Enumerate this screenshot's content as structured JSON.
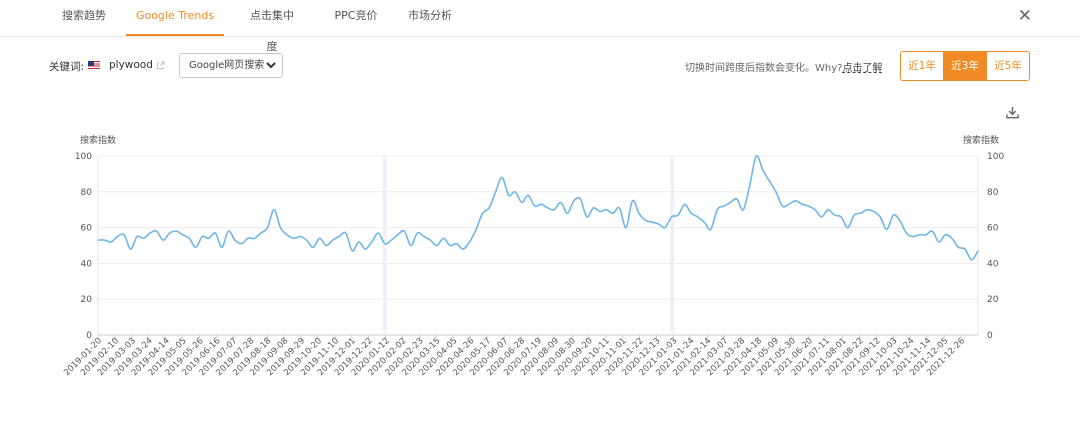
{
  "tabs": [
    "搜索趋势",
    "Google Trends",
    "点击集中度",
    "PPC竞价",
    "市场分析"
  ],
  "active_tab": 1,
  "close_icon": "close-icon",
  "keyword": {
    "label": "关键词:",
    "flag": "us-flag-icon",
    "value": "plywood",
    "link_icon": "external-link-icon"
  },
  "search_type": {
    "selected": "Google网页搜索"
  },
  "hint": {
    "text": "切换时间跨度后指数会变化。Why?",
    "link": "点击了解"
  },
  "ranges": [
    "近1年",
    "近3年",
    "近5年"
  ],
  "active_range": 1,
  "download_icon": "download-icon",
  "colors": {
    "accent": "#f08a24",
    "line": "#6fb5e8"
  },
  "chart_data": {
    "type": "line",
    "ylabel_left": "搜索指数",
    "ylabel_right": "搜索指数",
    "ylim": [
      0,
      100
    ],
    "yticks": [
      0,
      20,
      40,
      60,
      80,
      100
    ],
    "grid": true,
    "x_tick_labels": [
      "2019-01-20",
      "2019-02-10",
      "2019-03-03",
      "2019-03-24",
      "2019-04-14",
      "2019-05-05",
      "2019-05-26",
      "2019-06-16",
      "2019-07-07",
      "2019-07-28",
      "2019-08-18",
      "2019-09-08",
      "2019-09-29",
      "2019-10-20",
      "2019-11-10",
      "2019-12-01",
      "2019-12-22",
      "2020-01-12",
      "2020-02-02",
      "2020-02-23",
      "2020-03-15",
      "2020-04-05",
      "2020-04-26",
      "2020-05-17",
      "2020-06-07",
      "2020-06-28",
      "2020-07-19",
      "2020-08-09",
      "2020-08-30",
      "2020-09-20",
      "2020-10-11",
      "2020-11-01",
      "2020-11-22",
      "2020-12-13",
      "2021-01-03",
      "2021-01-24",
      "2021-02-14",
      "2021-03-07",
      "2021-03-28",
      "2021-04-18",
      "2021-05-09",
      "2021-05-30",
      "2021-06-20",
      "2021-07-11",
      "2021-08-01",
      "2021-08-22",
      "2021-09-12",
      "2021-10-03",
      "2021-10-24",
      "2021-11-14",
      "2021-12-05",
      "2021-12-26"
    ],
    "series": [
      {
        "values": [
          53,
          53,
          52,
          55,
          56,
          48,
          55,
          54,
          57,
          58,
          53,
          57,
          58,
          56,
          54,
          49,
          55,
          54,
          57,
          49,
          58,
          53,
          51,
          54,
          54,
          57,
          60,
          70,
          60,
          56,
          54,
          55,
          53,
          49,
          54,
          50,
          53,
          55,
          57,
          47,
          52,
          48,
          52,
          57,
          51,
          53,
          56,
          58,
          50,
          57,
          55,
          53,
          50,
          54,
          50,
          51,
          48,
          52,
          59,
          68,
          71,
          80,
          88,
          78,
          80,
          74,
          78,
          72,
          73,
          71,
          70,
          74,
          68,
          75,
          76,
          66,
          71,
          69,
          70,
          68,
          71,
          60,
          75,
          68,
          64,
          63,
          62,
          60,
          66,
          67,
          73,
          68,
          66,
          63,
          59,
          70,
          72,
          74,
          76,
          70,
          84,
          100,
          92,
          86,
          80,
          72,
          73,
          75,
          73,
          72,
          70,
          66,
          70,
          67,
          66,
          60,
          67,
          68,
          70,
          69,
          66,
          59,
          67,
          64,
          57,
          55,
          56,
          56,
          58,
          52,
          56,
          54,
          49,
          48,
          42,
          47
        ]
      }
    ]
  }
}
